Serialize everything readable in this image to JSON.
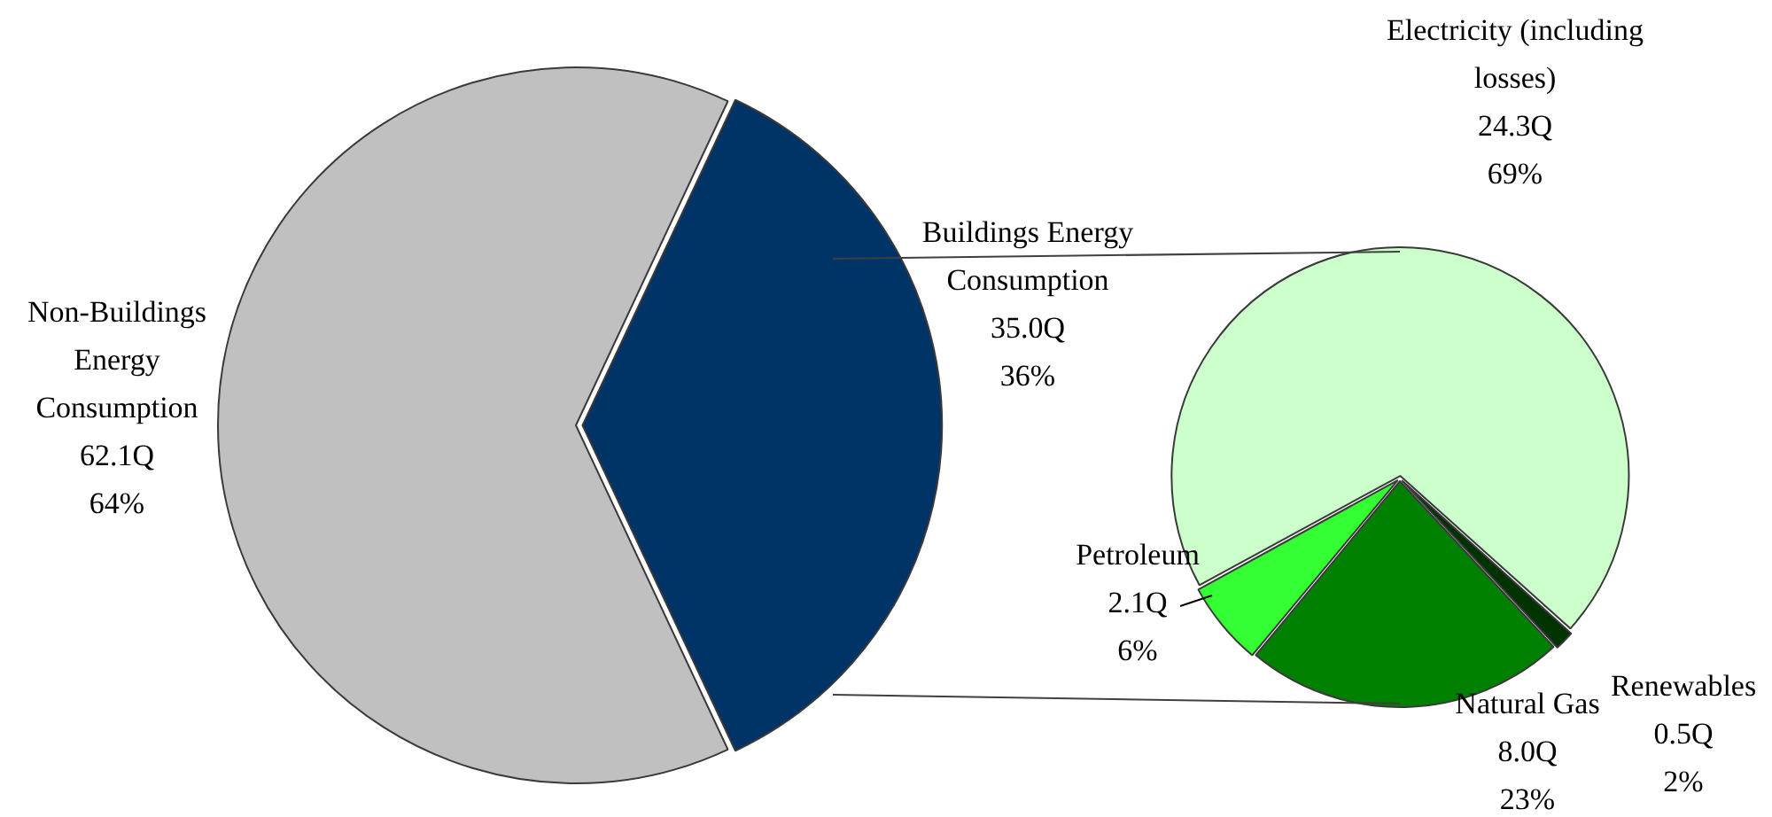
{
  "chart_data": [
    {
      "type": "pie",
      "categories": [
        "Non-Buildings Energy Consumption",
        "Buildings Energy Consumption"
      ],
      "values": [
        62.1,
        35.0
      ],
      "colors": [
        "#c0c0c0",
        "#003366"
      ],
      "value_labels": [
        "62.1Q\n64%",
        "35.0Q\n36%"
      ],
      "legend": false
    },
    {
      "type": "pie",
      "categories": [
        "Electricity (including losses)",
        "Renewables",
        "Natural Gas",
        "Petroleum"
      ],
      "values": [
        24.3,
        0.5,
        8.0,
        2.1
      ],
      "colors": [
        "#ccffcc",
        "#003300",
        "#008000",
        "#33ff33"
      ],
      "value_labels": [
        "24.3Q\n69%",
        "0.5Q\n2%",
        "8.0Q\n23%",
        "2.1Q\n6%"
      ],
      "legend": false
    }
  ]
}
